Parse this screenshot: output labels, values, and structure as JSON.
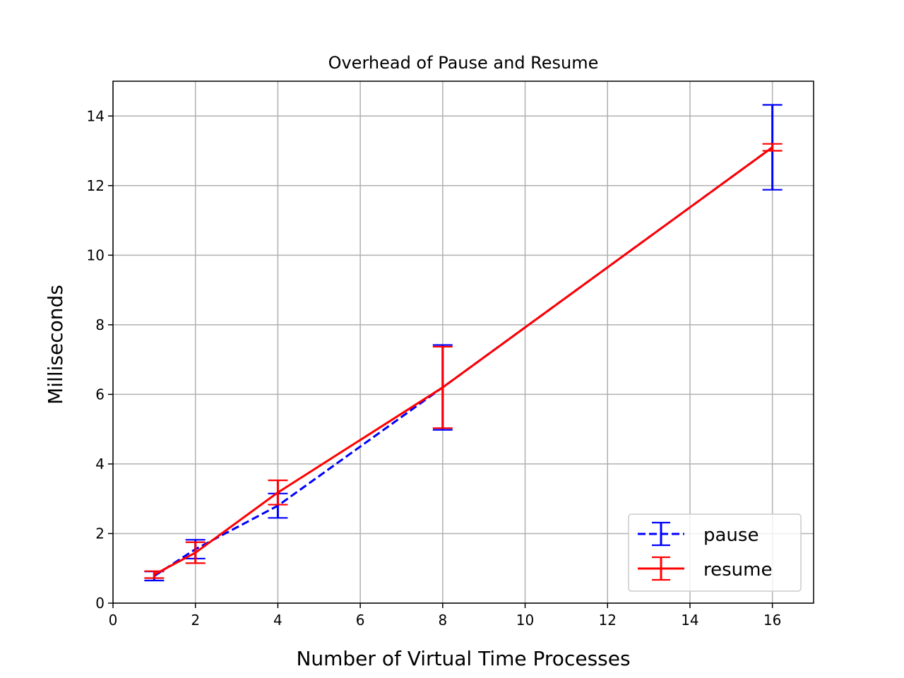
{
  "chart_data": {
    "type": "line",
    "title": "Overhead of Pause and Resume",
    "xlabel": "Number of Virtual Time Processes",
    "ylabel": "Milliseconds",
    "xlim": [
      0,
      17
    ],
    "ylim": [
      0,
      15
    ],
    "xticks": [
      "0",
      "2",
      "4",
      "6",
      "8",
      "10",
      "12",
      "14",
      "16"
    ],
    "yticks": [
      "0",
      "2",
      "4",
      "6",
      "8",
      "10",
      "12",
      "14"
    ],
    "grid": true,
    "legend_position": "lower-right",
    "series": [
      {
        "name": "pause",
        "color": "#0000ff",
        "line_style": "dashed",
        "x": [
          1,
          2,
          4,
          8,
          16
        ],
        "y": [
          0.78,
          1.55,
          2.8,
          6.2,
          13.1
        ],
        "yerr": [
          0.13,
          0.27,
          0.35,
          1.22,
          1.22
        ]
      },
      {
        "name": "resume",
        "color": "#ff0000",
        "line_style": "solid",
        "x": [
          1,
          2,
          4,
          8,
          16
        ],
        "y": [
          0.82,
          1.45,
          3.18,
          6.2,
          13.1
        ],
        "yerr": [
          0.1,
          0.3,
          0.35,
          1.17,
          0.1
        ]
      }
    ]
  }
}
